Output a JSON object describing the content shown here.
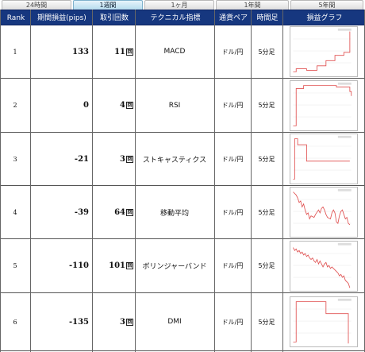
{
  "tabs": [
    {
      "label": "24時間",
      "active": false
    },
    {
      "label": "1週間",
      "active": true
    },
    {
      "label": "1ヶ月",
      "active": false
    },
    {
      "label": "1年間",
      "active": false
    },
    {
      "label": "5年間",
      "active": false
    }
  ],
  "headers": {
    "rank": "Rank",
    "pips": "期間損益(pips)",
    "trades": "取引回数",
    "indicator": "テクニカル指標",
    "pair": "通貨ペア",
    "timeframe": "時間足",
    "graph": "損益グラフ"
  },
  "count_unit": "回",
  "colors": {
    "header_bg": "#16377f",
    "line": "#e05050"
  },
  "rows": [
    {
      "rank": "1",
      "pips": "133",
      "trades": "11",
      "indicator": "MACD",
      "pair": "ドル/円",
      "timeframe": "5分足",
      "graph_shape": "up-step"
    },
    {
      "rank": "2",
      "pips": "0",
      "trades": "4",
      "indicator": "RSI",
      "pair": "ドル/円",
      "timeframe": "5分足",
      "graph_shape": "high-flat"
    },
    {
      "rank": "3",
      "pips": "-21",
      "trades": "3",
      "indicator": "ストキャスティクス",
      "pair": "ドル/円",
      "timeframe": "5分足",
      "graph_shape": "step-down"
    },
    {
      "rank": "4",
      "pips": "-39",
      "trades": "64",
      "indicator": "移動平均",
      "pair": "ドル/円",
      "timeframe": "5分足",
      "graph_shape": "noisy-down"
    },
    {
      "rank": "5",
      "pips": "-110",
      "trades": "101",
      "indicator": "ボリンジャーバンド",
      "pair": "ドル/円",
      "timeframe": "5分足",
      "graph_shape": "noisy-decline"
    },
    {
      "rank": "6",
      "pips": "-135",
      "trades": "3",
      "indicator": "DMI",
      "pair": "ドル/円",
      "timeframe": "5分足",
      "graph_shape": "step-down-late"
    }
  ]
}
